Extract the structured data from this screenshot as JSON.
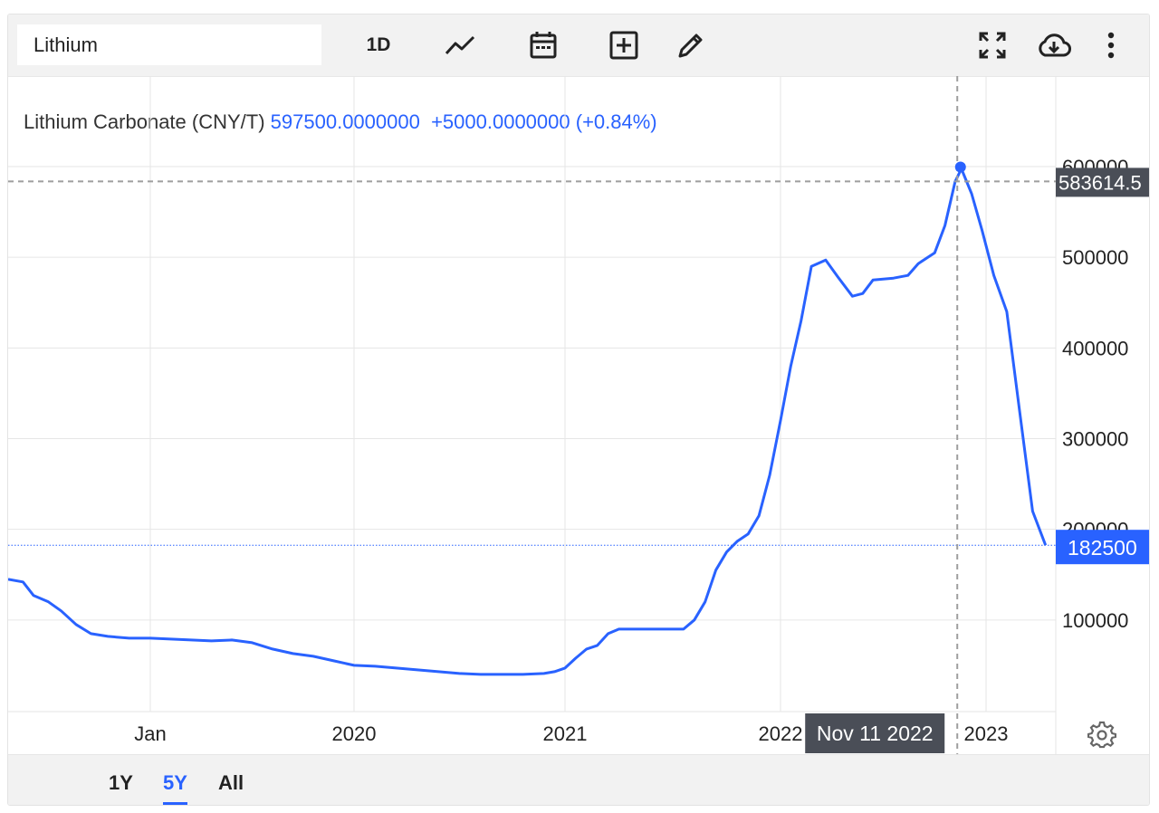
{
  "toolbar": {
    "search_value": "Lithium",
    "interval_label": "1D",
    "icons": [
      "line-chart-icon",
      "calendar-icon",
      "add-box-icon",
      "pencil-icon",
      "fullscreen-icon",
      "cloud-download-icon",
      "more-vertical-icon"
    ]
  },
  "legend": {
    "series_label": "Lithium Carbonate (CNY/T)",
    "last_value": "597500.0000000",
    "change": "+5000.0000000 (+0.84%)"
  },
  "crosshair": {
    "price_label": "583614.5",
    "date_label": "Nov 11 2022"
  },
  "last_price_label": "182500",
  "range_buttons": [
    {
      "label": "1Y",
      "active": false
    },
    {
      "label": "5Y",
      "active": true
    },
    {
      "label": "All",
      "active": false
    }
  ],
  "colors": {
    "line": "#2962ff",
    "grid": "#e6e6e6",
    "crosshair": "#9e9e9e",
    "label_dark": "#4a4e57",
    "label_blue": "#2962ff"
  },
  "chart_data": {
    "type": "line",
    "title": "Lithium Carbonate (CNY/T)",
    "x_ticks": [
      {
        "label": "Jan",
        "t": 2019.0
      },
      {
        "label": "2020",
        "t": 2020.0
      },
      {
        "label": "2021",
        "t": 2021.0
      },
      {
        "label": "2022",
        "t": 2022.0
      },
      {
        "label": "2023",
        "t": 2023.0
      }
    ],
    "y_ticks": [
      100000,
      200000,
      300000,
      400000,
      500000,
      600000
    ],
    "xlim": [
      2018.33,
      2023.28
    ],
    "ylim": [
      0,
      600000
    ],
    "grid": true,
    "series": [
      {
        "points": [
          [
            2018.33,
            145000
          ],
          [
            2018.4,
            142000
          ],
          [
            2018.45,
            127000
          ],
          [
            2018.52,
            120000
          ],
          [
            2018.58,
            110000
          ],
          [
            2018.65,
            95000
          ],
          [
            2018.72,
            85000
          ],
          [
            2018.8,
            82000
          ],
          [
            2018.9,
            80000
          ],
          [
            2019.0,
            80000
          ],
          [
            2019.1,
            79000
          ],
          [
            2019.2,
            78000
          ],
          [
            2019.3,
            77000
          ],
          [
            2019.4,
            78000
          ],
          [
            2019.5,
            75000
          ],
          [
            2019.6,
            68000
          ],
          [
            2019.7,
            63000
          ],
          [
            2019.8,
            60000
          ],
          [
            2019.9,
            55000
          ],
          [
            2020.0,
            50000
          ],
          [
            2020.1,
            49000
          ],
          [
            2020.2,
            47000
          ],
          [
            2020.3,
            45000
          ],
          [
            2020.4,
            43000
          ],
          [
            2020.5,
            41000
          ],
          [
            2020.6,
            40000
          ],
          [
            2020.7,
            40000
          ],
          [
            2020.8,
            40000
          ],
          [
            2020.9,
            41000
          ],
          [
            2020.95,
            43000
          ],
          [
            2021.0,
            47000
          ],
          [
            2021.05,
            58000
          ],
          [
            2021.1,
            68000
          ],
          [
            2021.15,
            72000
          ],
          [
            2021.2,
            85000
          ],
          [
            2021.25,
            90000
          ],
          [
            2021.35,
            90000
          ],
          [
            2021.45,
            90000
          ],
          [
            2021.55,
            90000
          ],
          [
            2021.6,
            100000
          ],
          [
            2021.65,
            120000
          ],
          [
            2021.7,
            155000
          ],
          [
            2021.75,
            175000
          ],
          [
            2021.8,
            187000
          ],
          [
            2021.85,
            195000
          ],
          [
            2021.9,
            215000
          ],
          [
            2021.95,
            260000
          ],
          [
            2022.0,
            320000
          ],
          [
            2022.05,
            380000
          ],
          [
            2022.1,
            430000
          ],
          [
            2022.15,
            490000
          ],
          [
            2022.22,
            497000
          ],
          [
            2022.28,
            478000
          ],
          [
            2022.35,
            457000
          ],
          [
            2022.4,
            460000
          ],
          [
            2022.45,
            475000
          ],
          [
            2022.55,
            477000
          ],
          [
            2022.62,
            480000
          ],
          [
            2022.67,
            493000
          ],
          [
            2022.75,
            505000
          ],
          [
            2022.8,
            535000
          ],
          [
            2022.85,
            583614.5
          ],
          [
            2022.88,
            597500
          ],
          [
            2022.93,
            570000
          ],
          [
            2022.98,
            530000
          ],
          [
            2023.03,
            480000
          ],
          [
            2023.08,
            440000
          ],
          [
            2023.13,
            330000
          ],
          [
            2023.18,
            220000
          ],
          [
            2023.23,
            182500
          ]
        ]
      }
    ]
  }
}
